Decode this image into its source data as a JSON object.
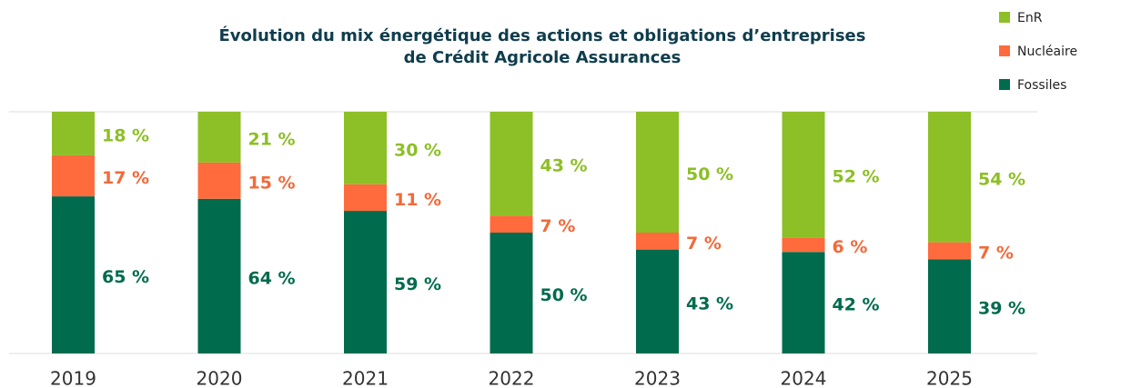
{
  "chart_data": {
    "type": "stacked_bar",
    "title": [
      "Évolution du mix énergétique des actions et obligations d’entreprises",
      "de Crédit Agricole Assurances"
    ],
    "categories": [
      "2019",
      "2020",
      "2021",
      "2022",
      "2023",
      "2024",
      "2025"
    ],
    "series": [
      {
        "name": "Fossiles",
        "color": "#006b4d",
        "values": [
          65,
          64,
          59,
          50,
          43,
          42,
          39
        ],
        "value_labels": [
          "65 %",
          "64 %",
          "59 %",
          "50 %",
          "43 %",
          "42 %",
          "39 %"
        ]
      },
      {
        "name": "Nucléaire",
        "color": "#ff6b3d",
        "values": [
          17,
          15,
          11,
          7,
          7,
          6,
          7
        ],
        "value_labels": [
          "17 %",
          "15 %",
          "11 %",
          "7 %",
          "7 %",
          "6 %",
          "7 %"
        ]
      },
      {
        "name": "EnR",
        "color": "#8dbf26",
        "values": [
          18,
          21,
          30,
          43,
          50,
          52,
          54
        ],
        "value_labels": [
          "18 %",
          "21 %",
          "30 %",
          "43 %",
          "50 %",
          "52 %",
          "54 %"
        ]
      }
    ],
    "ylim": [
      0,
      100
    ],
    "legend": "top-right"
  }
}
